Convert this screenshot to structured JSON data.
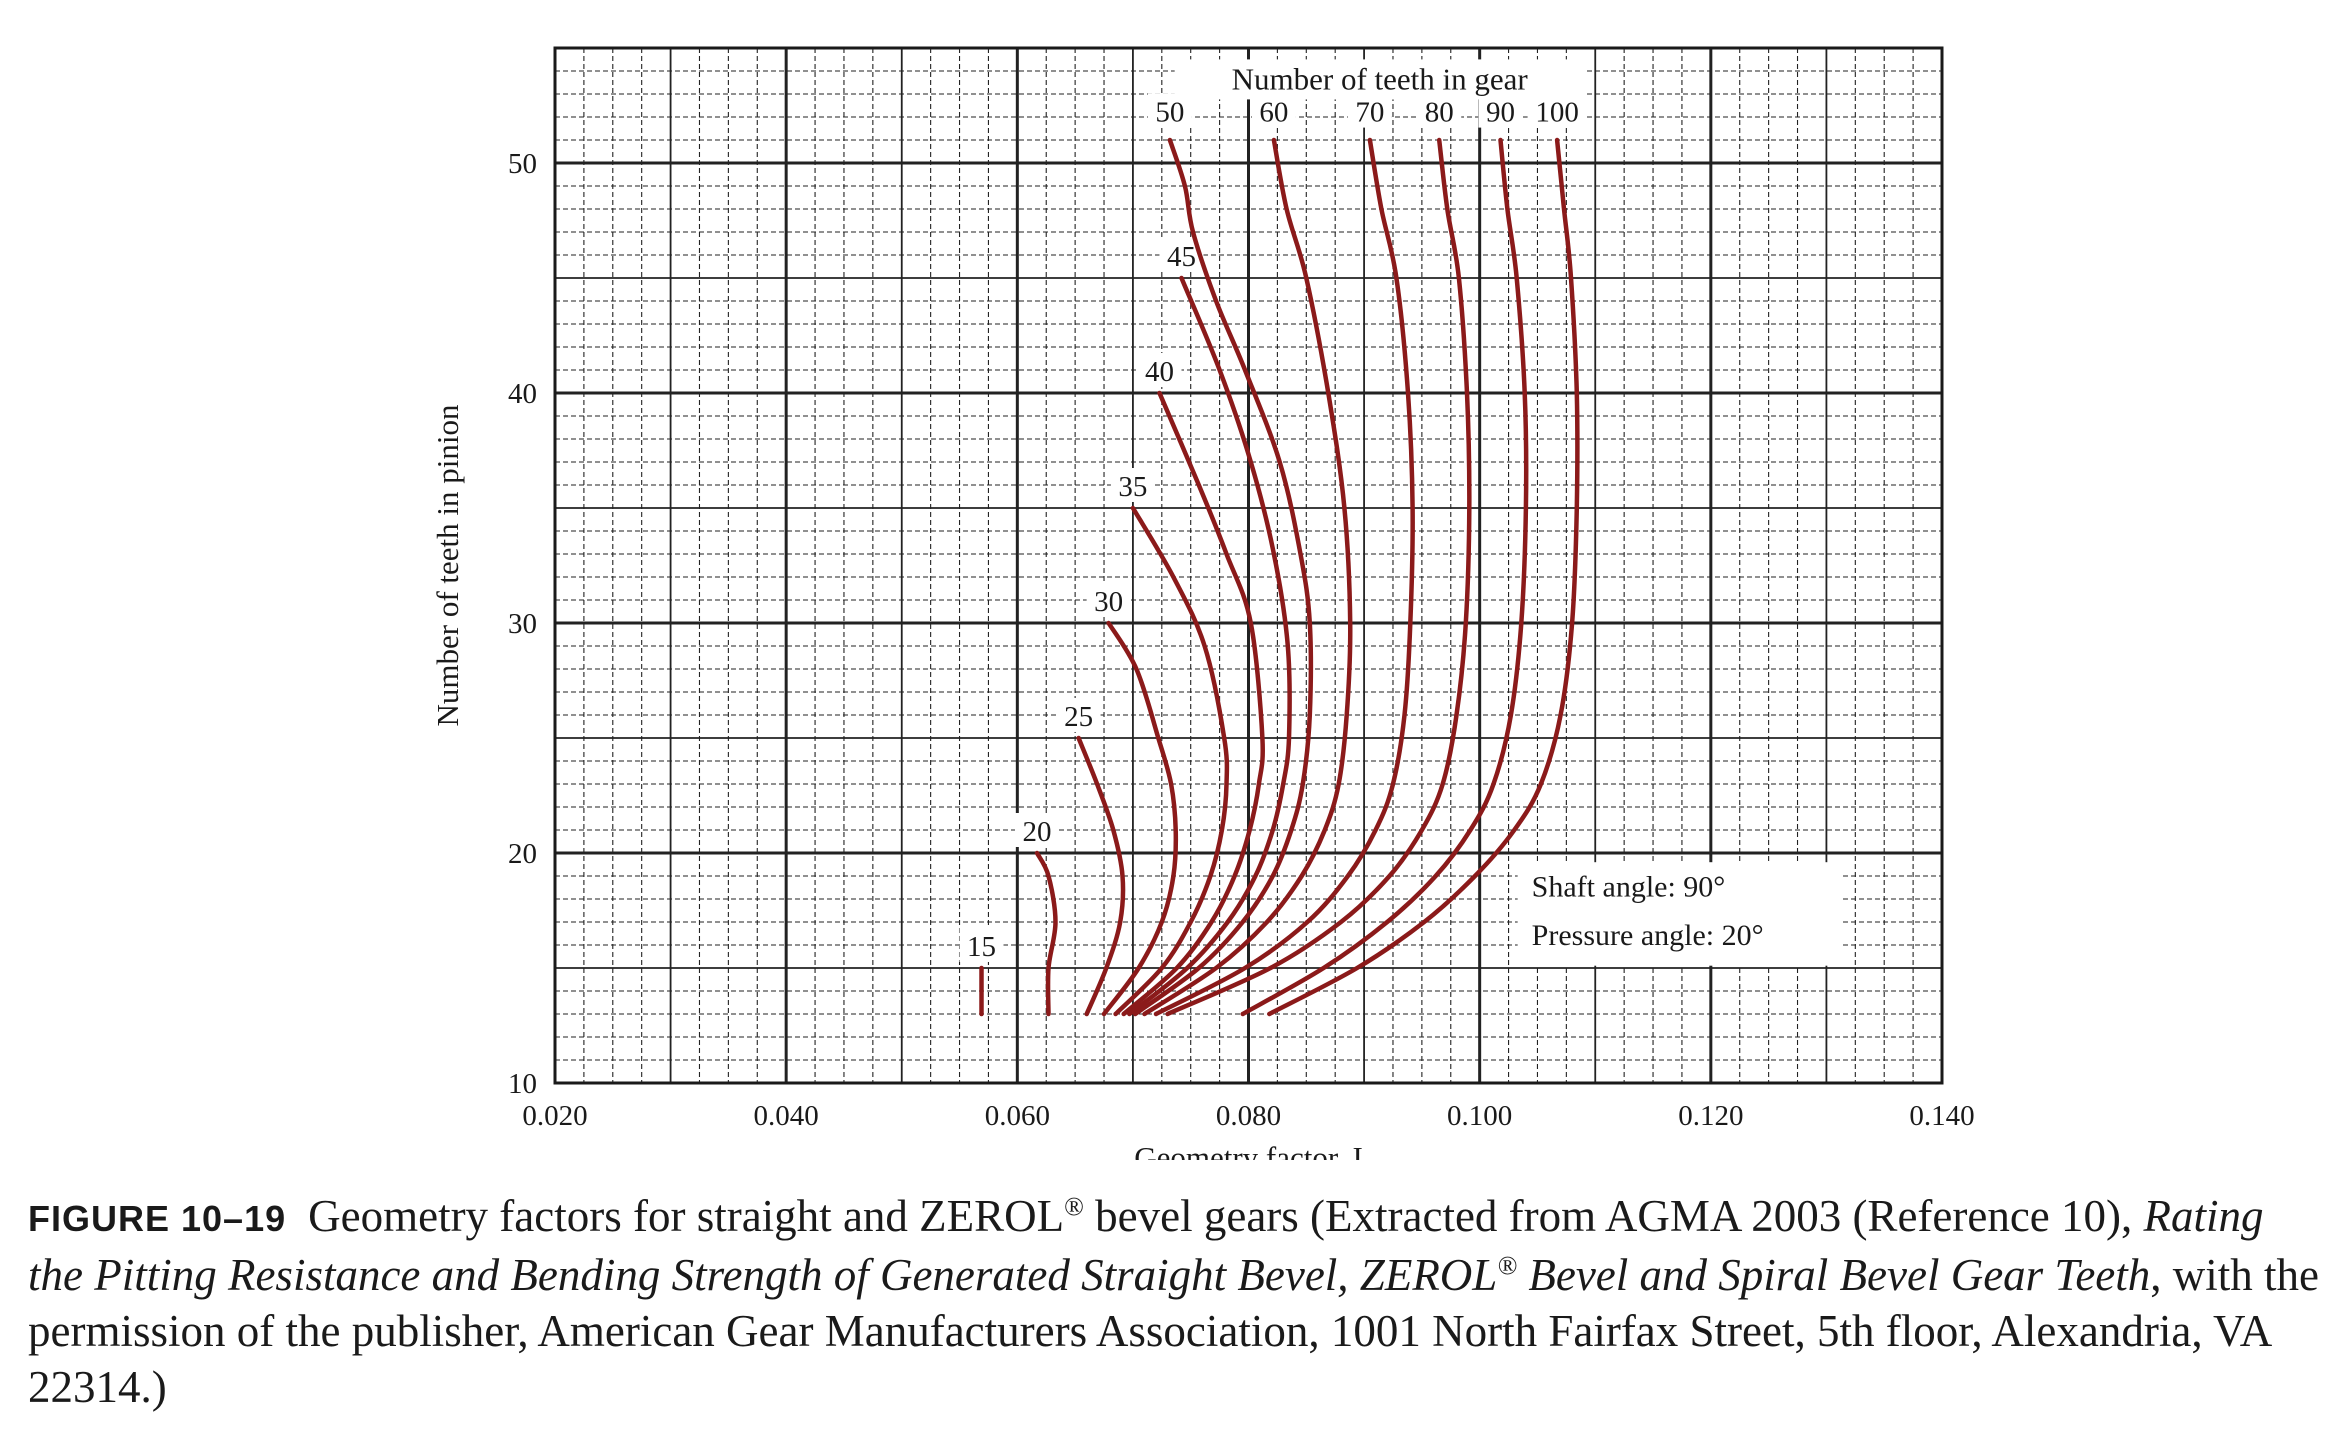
{
  "chart_data": {
    "type": "line",
    "title": "",
    "xlabel": "Geometry factor, I",
    "ylabel": "Number of teeth in pinion",
    "xlim": [
      0.02,
      0.14
    ],
    "ylim": [
      10,
      55
    ],
    "x_ticks": [
      "0.020",
      "0.040",
      "0.060",
      "0.080",
      "0.100",
      "0.120",
      "0.140"
    ],
    "y_ticks": [
      "10",
      "20",
      "30",
      "40",
      "50"
    ],
    "grid": true,
    "legend_title": "Number of teeth in gear",
    "notes": [
      "Shaft angle: 90°",
      "Pressure angle: 20°"
    ],
    "color": "#8b1a1a",
    "series": [
      {
        "name": "15",
        "label_position": "end",
        "points": [
          [
            0.0569,
            13
          ],
          [
            0.0569,
            15
          ]
        ]
      },
      {
        "name": "20",
        "label_position": "end",
        "points": [
          [
            0.0627,
            13
          ],
          [
            0.0627,
            15
          ],
          [
            0.0633,
            17
          ],
          [
            0.0627,
            19
          ],
          [
            0.0617,
            20
          ]
        ]
      },
      {
        "name": "25",
        "label_position": "end",
        "points": [
          [
            0.066,
            13
          ],
          [
            0.0677,
            15
          ],
          [
            0.0689,
            17
          ],
          [
            0.0691,
            19
          ],
          [
            0.0683,
            21
          ],
          [
            0.0669,
            23
          ],
          [
            0.0653,
            25
          ]
        ]
      },
      {
        "name": "30",
        "label_position": "end",
        "points": [
          [
            0.0675,
            13
          ],
          [
            0.0705,
            15
          ],
          [
            0.0725,
            17
          ],
          [
            0.0735,
            19
          ],
          [
            0.0737,
            21
          ],
          [
            0.0733,
            23
          ],
          [
            0.0722,
            25
          ],
          [
            0.0703,
            28
          ],
          [
            0.0679,
            30
          ]
        ]
      },
      {
        "name": "35",
        "label_position": "end",
        "points": [
          [
            0.0685,
            13
          ],
          [
            0.0725,
            15
          ],
          [
            0.075,
            17
          ],
          [
            0.0767,
            19
          ],
          [
            0.0777,
            21
          ],
          [
            0.0781,
            23
          ],
          [
            0.0779,
            25
          ],
          [
            0.0762,
            29
          ],
          [
            0.0735,
            32
          ],
          [
            0.07,
            35
          ]
        ]
      },
      {
        "name": "40",
        "label_position": "end",
        "points": [
          [
            0.0692,
            13
          ],
          [
            0.0738,
            15
          ],
          [
            0.0768,
            17
          ],
          [
            0.0788,
            19
          ],
          [
            0.0801,
            21
          ],
          [
            0.0809,
            23
          ],
          [
            0.0812,
            25
          ],
          [
            0.0802,
            30
          ],
          [
            0.0781,
            33
          ],
          [
            0.0757,
            36
          ],
          [
            0.0723,
            40
          ]
        ]
      },
      {
        "name": "45",
        "label_position": "end",
        "points": [
          [
            0.0697,
            13
          ],
          [
            0.0747,
            15
          ],
          [
            0.0782,
            17
          ],
          [
            0.0806,
            19
          ],
          [
            0.0821,
            21
          ],
          [
            0.083,
            23
          ],
          [
            0.0835,
            25
          ],
          [
            0.0834,
            29
          ],
          [
            0.0822,
            33
          ],
          [
            0.0802,
            37
          ],
          [
            0.0775,
            41
          ],
          [
            0.0742,
            45
          ]
        ]
      },
      {
        "name": "50",
        "label_position": "top",
        "points": [
          [
            0.0702,
            13
          ],
          [
            0.0757,
            15
          ],
          [
            0.0795,
            17
          ],
          [
            0.0821,
            19
          ],
          [
            0.0837,
            21
          ],
          [
            0.0847,
            23
          ],
          [
            0.0853,
            26
          ],
          [
            0.0853,
            30
          ],
          [
            0.0845,
            33
          ],
          [
            0.0827,
            37
          ],
          [
            0.0797,
            41
          ],
          [
            0.0772,
            44
          ],
          [
            0.0752,
            47
          ],
          [
            0.0745,
            49
          ],
          [
            0.0732,
            51
          ]
        ]
      },
      {
        "name": "60",
        "label_position": "top",
        "points": [
          [
            0.071,
            13
          ],
          [
            0.0772,
            15
          ],
          [
            0.0816,
            17
          ],
          [
            0.0846,
            19
          ],
          [
            0.0866,
            21
          ],
          [
            0.0878,
            23
          ],
          [
            0.0885,
            26
          ],
          [
            0.0888,
            30
          ],
          [
            0.0883,
            35
          ],
          [
            0.0869,
            40
          ],
          [
            0.085,
            45
          ],
          [
            0.0833,
            48
          ],
          [
            0.0822,
            51
          ]
        ]
      },
      {
        "name": "70",
        "label_position": "top",
        "points": [
          [
            0.072,
            13
          ],
          [
            0.0797,
            15
          ],
          [
            0.0851,
            17
          ],
          [
            0.0886,
            19
          ],
          [
            0.091,
            21
          ],
          [
            0.0925,
            23
          ],
          [
            0.0935,
            26
          ],
          [
            0.094,
            30
          ],
          [
            0.0942,
            35
          ],
          [
            0.0938,
            40
          ],
          [
            0.0928,
            45
          ],
          [
            0.0915,
            48
          ],
          [
            0.0905,
            51
          ]
        ]
      },
      {
        "name": "80",
        "label_position": "top",
        "points": [
          [
            0.073,
            13
          ],
          [
            0.0819,
            15
          ],
          [
            0.088,
            17
          ],
          [
            0.0922,
            19
          ],
          [
            0.095,
            21
          ],
          [
            0.0968,
            23
          ],
          [
            0.098,
            26
          ],
          [
            0.0988,
            30
          ],
          [
            0.0991,
            35
          ],
          [
            0.0989,
            40
          ],
          [
            0.0982,
            45
          ],
          [
            0.0972,
            48
          ],
          [
            0.0965,
            51
          ]
        ]
      },
      {
        "name": "90",
        "label_position": "top",
        "points": [
          [
            0.0795,
            13
          ],
          [
            0.0865,
            15
          ],
          [
            0.092,
            17
          ],
          [
            0.0962,
            19
          ],
          [
            0.0992,
            21
          ],
          [
            0.1012,
            23
          ],
          [
            0.1027,
            26
          ],
          [
            0.1036,
            30
          ],
          [
            0.104,
            35
          ],
          [
            0.1039,
            40
          ],
          [
            0.1032,
            45
          ],
          [
            0.1024,
            48
          ],
          [
            0.1018,
            51
          ]
        ]
      },
      {
        "name": "100",
        "label_position": "top",
        "points": [
          [
            0.0818,
            13
          ],
          [
            0.0894,
            15
          ],
          [
            0.0952,
            17
          ],
          [
            0.0996,
            19
          ],
          [
            0.103,
            21
          ],
          [
            0.1053,
            23
          ],
          [
            0.107,
            26
          ],
          [
            0.108,
            30
          ],
          [
            0.1084,
            35
          ],
          [
            0.1084,
            40
          ],
          [
            0.1079,
            45
          ],
          [
            0.1073,
            48
          ],
          [
            0.1067,
            51
          ]
        ]
      }
    ]
  },
  "caption": {
    "figure_label": "FIGURE 10–19",
    "text_1": "Geometry factors for straight and ZEROL",
    "reg_1": "®",
    "text_2": " bevel gears (Extracted from AGMA 2003 (Reference 10), ",
    "italic_1": "Rating the Pitting Resistance and Bending Strength of Generated Straight Bevel, ZEROL",
    "reg_2": "®",
    "italic_2": " Bevel and Spiral Bevel Gear Teeth",
    "text_3": ", with the permission of the publisher, American Gear Manufacturers Association, 1001 North Fairfax Street, 5th floor, Alexandria, VA 22314.)"
  }
}
